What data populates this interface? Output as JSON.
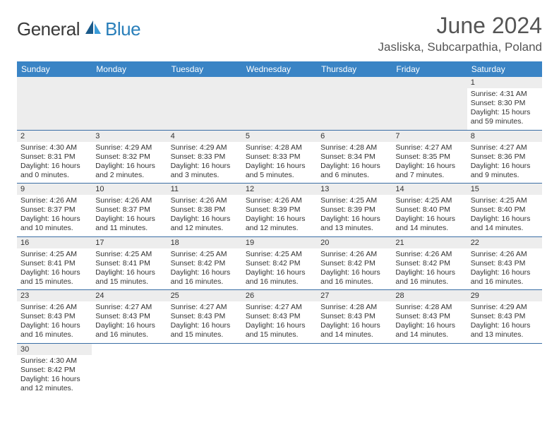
{
  "brand": {
    "part1": "General",
    "part2": "Blue"
  },
  "title": "June 2024",
  "location": "Jasliska, Subcarpathia, Poland",
  "colors": {
    "header_bg": "#3a84c5",
    "header_fg": "#ffffff",
    "daynum_bg": "#ededed",
    "border": "#3a6ea5",
    "logo_dark": "#3a3a3a",
    "logo_blue": "#2a7fba",
    "text": "#333333"
  },
  "weekdays": [
    "Sunday",
    "Monday",
    "Tuesday",
    "Wednesday",
    "Thursday",
    "Friday",
    "Saturday"
  ],
  "weeks": [
    [
      null,
      null,
      null,
      null,
      null,
      null,
      {
        "n": "1",
        "sr": "4:31 AM",
        "ss": "8:30 PM",
        "dl": "15 hours and 59 minutes."
      }
    ],
    [
      {
        "n": "2",
        "sr": "4:30 AM",
        "ss": "8:31 PM",
        "dl": "16 hours and 0 minutes."
      },
      {
        "n": "3",
        "sr": "4:29 AM",
        "ss": "8:32 PM",
        "dl": "16 hours and 2 minutes."
      },
      {
        "n": "4",
        "sr": "4:29 AM",
        "ss": "8:33 PM",
        "dl": "16 hours and 3 minutes."
      },
      {
        "n": "5",
        "sr": "4:28 AM",
        "ss": "8:33 PM",
        "dl": "16 hours and 5 minutes."
      },
      {
        "n": "6",
        "sr": "4:28 AM",
        "ss": "8:34 PM",
        "dl": "16 hours and 6 minutes."
      },
      {
        "n": "7",
        "sr": "4:27 AM",
        "ss": "8:35 PM",
        "dl": "16 hours and 7 minutes."
      },
      {
        "n": "8",
        "sr": "4:27 AM",
        "ss": "8:36 PM",
        "dl": "16 hours and 9 minutes."
      }
    ],
    [
      {
        "n": "9",
        "sr": "4:26 AM",
        "ss": "8:37 PM",
        "dl": "16 hours and 10 minutes."
      },
      {
        "n": "10",
        "sr": "4:26 AM",
        "ss": "8:37 PM",
        "dl": "16 hours and 11 minutes."
      },
      {
        "n": "11",
        "sr": "4:26 AM",
        "ss": "8:38 PM",
        "dl": "16 hours and 12 minutes."
      },
      {
        "n": "12",
        "sr": "4:26 AM",
        "ss": "8:39 PM",
        "dl": "16 hours and 12 minutes."
      },
      {
        "n": "13",
        "sr": "4:25 AM",
        "ss": "8:39 PM",
        "dl": "16 hours and 13 minutes."
      },
      {
        "n": "14",
        "sr": "4:25 AM",
        "ss": "8:40 PM",
        "dl": "16 hours and 14 minutes."
      },
      {
        "n": "15",
        "sr": "4:25 AM",
        "ss": "8:40 PM",
        "dl": "16 hours and 14 minutes."
      }
    ],
    [
      {
        "n": "16",
        "sr": "4:25 AM",
        "ss": "8:41 PM",
        "dl": "16 hours and 15 minutes."
      },
      {
        "n": "17",
        "sr": "4:25 AM",
        "ss": "8:41 PM",
        "dl": "16 hours and 15 minutes."
      },
      {
        "n": "18",
        "sr": "4:25 AM",
        "ss": "8:42 PM",
        "dl": "16 hours and 16 minutes."
      },
      {
        "n": "19",
        "sr": "4:25 AM",
        "ss": "8:42 PM",
        "dl": "16 hours and 16 minutes."
      },
      {
        "n": "20",
        "sr": "4:26 AM",
        "ss": "8:42 PM",
        "dl": "16 hours and 16 minutes."
      },
      {
        "n": "21",
        "sr": "4:26 AM",
        "ss": "8:42 PM",
        "dl": "16 hours and 16 minutes."
      },
      {
        "n": "22",
        "sr": "4:26 AM",
        "ss": "8:43 PM",
        "dl": "16 hours and 16 minutes."
      }
    ],
    [
      {
        "n": "23",
        "sr": "4:26 AM",
        "ss": "8:43 PM",
        "dl": "16 hours and 16 minutes."
      },
      {
        "n": "24",
        "sr": "4:27 AM",
        "ss": "8:43 PM",
        "dl": "16 hours and 16 minutes."
      },
      {
        "n": "25",
        "sr": "4:27 AM",
        "ss": "8:43 PM",
        "dl": "16 hours and 15 minutes."
      },
      {
        "n": "26",
        "sr": "4:27 AM",
        "ss": "8:43 PM",
        "dl": "16 hours and 15 minutes."
      },
      {
        "n": "27",
        "sr": "4:28 AM",
        "ss": "8:43 PM",
        "dl": "16 hours and 14 minutes."
      },
      {
        "n": "28",
        "sr": "4:28 AM",
        "ss": "8:43 PM",
        "dl": "16 hours and 14 minutes."
      },
      {
        "n": "29",
        "sr": "4:29 AM",
        "ss": "8:43 PM",
        "dl": "16 hours and 13 minutes."
      }
    ],
    [
      {
        "n": "30",
        "sr": "4:30 AM",
        "ss": "8:42 PM",
        "dl": "16 hours and 12 minutes."
      },
      null,
      null,
      null,
      null,
      null,
      null
    ]
  ],
  "labels": {
    "sunrise": "Sunrise:",
    "sunset": "Sunset:",
    "daylight": "Daylight:"
  }
}
